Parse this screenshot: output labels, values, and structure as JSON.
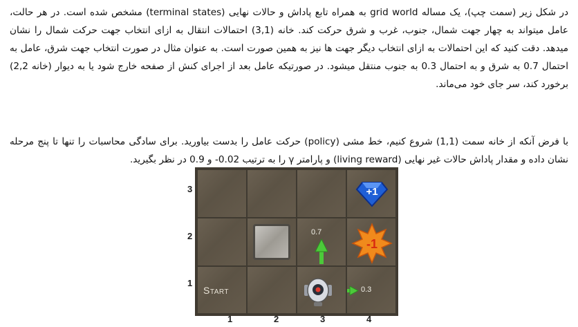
{
  "paragraph1": "در شکل زیر (سمت چپ)، یک مساله grid world به همراه تابع پاداش و حالات نهایی (terminal states) مشخص شده است. در هر حالت، عامل میتواند به چهار جهت شمال، جنوب، غرب و شرق حرکت کند. خانه (3,1) احتمالات انتقال به ازای انتخاب جهت حرکت شمال را نشان میدهد. دقت کنید که این احتمالات به ازای انتخاب دیگر جهت ها نیز به همین صورت است. به عنوان مثال در صورت انتخاب جهت شرق، عامل به احتمال 0.7 به شرق و به احتمال 0.3 به جنوب منتقل میشود. در صورتیکه عامل بعد از اجرای کنش از صفحه خارج شود یا به دیوار (خانه 2,2) برخورد کند، سر جای خود می‌ماند.",
  "paragraph2": "با فرض آنکه از خانه سمت (1,1) شروع کنیم، خط مشی (policy) حرکت عامل را بدست بیاورید. برای سادگی محاسبات را تنها تا پنج مرحله نشان داده و مقدار پاداش حالات غیر نهایی (living reward) و پارامتر γ را به ترتیب 0.02- و 0.9 در نظر بگیرید.",
  "grid": {
    "row_labels": [
      "3",
      "2",
      "1"
    ],
    "col_labels": [
      "1",
      "2",
      "3",
      "4"
    ],
    "start_label": "Start",
    "reward_positive": "+1",
    "reward_negative": "-1",
    "prob_north": "0.7",
    "prob_east": "0.3"
  },
  "colors": {
    "board": "#5e5547",
    "gem": "#1f5fd6",
    "fire": "#f08a1c",
    "arrow": "#4cc93a"
  }
}
